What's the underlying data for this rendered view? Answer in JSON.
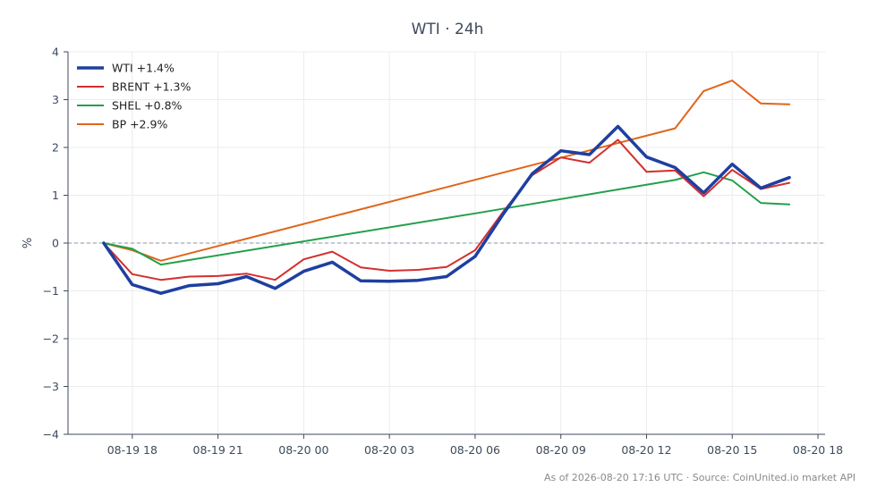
{
  "chart_data": {
    "type": "line",
    "title": "WTI · 24h",
    "ylabel": "%",
    "ylim": [
      -4,
      4
    ],
    "yticks": [
      -4,
      -3,
      -2,
      -1,
      0,
      1,
      2,
      3,
      4
    ],
    "ytick_labels": [
      "−4",
      "−3",
      "−2",
      "−1",
      "0",
      "1",
      "2",
      "3",
      "4"
    ],
    "xlim": [
      "2026-08-19 15:45",
      "2026-08-20 18:15"
    ],
    "xticks": [
      "2026-08-19 18:00",
      "2026-08-19 21:00",
      "2026-08-20 00:00",
      "2026-08-20 03:00",
      "2026-08-20 06:00",
      "2026-08-20 09:00",
      "2026-08-20 12:00",
      "2026-08-20 15:00",
      "2026-08-20 18:00"
    ],
    "xtick_labels": [
      "08-19 18",
      "08-19 21",
      "08-20 00",
      "08-20 03",
      "08-20 06",
      "08-20 09",
      "08-20 12",
      "08-20 15",
      "08-20 18"
    ],
    "zero_line": true,
    "grid": true,
    "legend": "top-left",
    "series": [
      {
        "name": "WTI +1.4%",
        "color": "#1f3fa0",
        "width": 3.5,
        "x": [
          "2026-08-19 17:00",
          "2026-08-19 18:00",
          "2026-08-19 19:00",
          "2026-08-19 20:00",
          "2026-08-19 21:00",
          "2026-08-19 22:00",
          "2026-08-19 23:00",
          "2026-08-20 00:00",
          "2026-08-20 01:00",
          "2026-08-20 02:00",
          "2026-08-20 03:00",
          "2026-08-20 04:00",
          "2026-08-20 05:00",
          "2026-08-20 06:00",
          "2026-08-20 07:00",
          "2026-08-20 08:00",
          "2026-08-20 09:00",
          "2026-08-20 10:00",
          "2026-08-20 11:00",
          "2026-08-20 12:00",
          "2026-08-20 13:00",
          "2026-08-20 14:00",
          "2026-08-20 15:00",
          "2026-08-20 16:00",
          "2026-08-20 17:00"
        ],
        "values": [
          0.0,
          -0.87,
          -1.05,
          -0.89,
          -0.85,
          -0.7,
          -0.95,
          -0.59,
          -0.4,
          -0.79,
          -0.8,
          -0.78,
          -0.7,
          -0.28,
          0.62,
          1.45,
          1.93,
          1.85,
          2.44,
          1.8,
          1.58,
          1.05,
          1.65,
          1.15,
          1.37
        ]
      },
      {
        "name": "BRENT +1.3%",
        "color": "#d32f2f",
        "width": 2,
        "x": [
          "2026-08-19 17:00",
          "2026-08-19 18:00",
          "2026-08-19 19:00",
          "2026-08-19 20:00",
          "2026-08-19 21:00",
          "2026-08-19 22:00",
          "2026-08-19 23:00",
          "2026-08-20 00:00",
          "2026-08-20 01:00",
          "2026-08-20 02:00",
          "2026-08-20 03:00",
          "2026-08-20 04:00",
          "2026-08-20 05:00",
          "2026-08-20 06:00",
          "2026-08-20 07:00",
          "2026-08-20 08:00",
          "2026-08-20 09:00",
          "2026-08-20 10:00",
          "2026-08-20 11:00",
          "2026-08-20 12:00",
          "2026-08-20 13:00",
          "2026-08-20 14:00",
          "2026-08-20 15:00",
          "2026-08-20 16:00",
          "2026-08-20 17:00"
        ],
        "values": [
          0.0,
          -0.65,
          -0.77,
          -0.7,
          -0.69,
          -0.64,
          -0.77,
          -0.34,
          -0.18,
          -0.51,
          -0.58,
          -0.56,
          -0.5,
          -0.15,
          0.67,
          1.42,
          1.79,
          1.68,
          2.16,
          1.49,
          1.52,
          0.98,
          1.53,
          1.13,
          1.26
        ]
      },
      {
        "name": "SHEL +0.8%",
        "color": "#22a04b",
        "width": 2,
        "x": [
          "2026-08-19 17:00",
          "2026-08-19 18:00",
          "2026-08-19 19:00",
          "2026-08-20 06:00",
          "2026-08-20 13:00",
          "2026-08-20 14:00",
          "2026-08-20 15:00",
          "2026-08-20 16:00",
          "2026-08-20 17:00"
        ],
        "values": [
          0.0,
          -0.12,
          -0.45,
          0.62,
          1.32,
          1.48,
          1.31,
          0.84,
          0.81
        ]
      },
      {
        "name": "BP +2.9%",
        "color": "#e0651a",
        "width": 2,
        "x": [
          "2026-08-19 17:00",
          "2026-08-19 18:00",
          "2026-08-19 19:00",
          "2026-08-20 13:00",
          "2026-08-20 14:00",
          "2026-08-20 15:00",
          "2026-08-20 16:00",
          "2026-08-20 17:00"
        ],
        "values": [
          0.0,
          -0.15,
          -0.37,
          2.4,
          3.18,
          3.4,
          2.92,
          2.9
        ]
      }
    ],
    "source_note": "As of 2026-08-20 17:16 UTC · Source: CoinUnited.io market API"
  }
}
